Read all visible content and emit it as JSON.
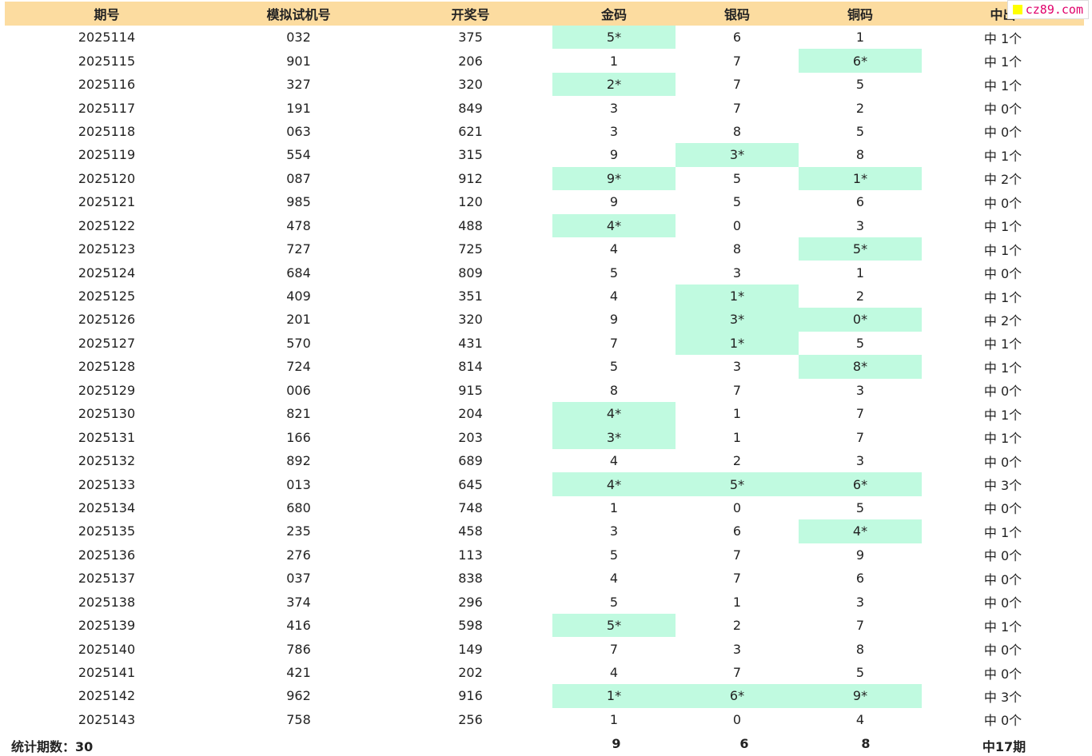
{
  "header": {
    "qihao": "期号",
    "moni": "模拟试机号",
    "kaijiang": "开奖号",
    "jinma": "金码",
    "yinma": "银码",
    "tongma": "铜码",
    "zhongchu": "中出"
  },
  "rows": [
    {
      "qihao": "2025114",
      "moni": "032",
      "kaijiang": "375",
      "jin": "5*",
      "yin": "6",
      "tong": "1",
      "zhong": "中 1个"
    },
    {
      "qihao": "2025115",
      "moni": "901",
      "kaijiang": "206",
      "jin": "1",
      "yin": "7",
      "tong": "6*",
      "zhong": "中 1个"
    },
    {
      "qihao": "2025116",
      "moni": "327",
      "kaijiang": "320",
      "jin": "2*",
      "yin": "7",
      "tong": "5",
      "zhong": "中 1个"
    },
    {
      "qihao": "2025117",
      "moni": "191",
      "kaijiang": "849",
      "jin": "3",
      "yin": "7",
      "tong": "2",
      "zhong": "中 0个"
    },
    {
      "qihao": "2025118",
      "moni": "063",
      "kaijiang": "621",
      "jin": "3",
      "yin": "8",
      "tong": "5",
      "zhong": "中 0个"
    },
    {
      "qihao": "2025119",
      "moni": "554",
      "kaijiang": "315",
      "jin": "9",
      "yin": "3*",
      "tong": "8",
      "zhong": "中 1个"
    },
    {
      "qihao": "2025120",
      "moni": "087",
      "kaijiang": "912",
      "jin": "9*",
      "yin": "5",
      "tong": "1*",
      "zhong": "中 2个"
    },
    {
      "qihao": "2025121",
      "moni": "985",
      "kaijiang": "120",
      "jin": "9",
      "yin": "5",
      "tong": "6",
      "zhong": "中 0个"
    },
    {
      "qihao": "2025122",
      "moni": "478",
      "kaijiang": "488",
      "jin": "4*",
      "yin": "0",
      "tong": "3",
      "zhong": "中 1个"
    },
    {
      "qihao": "2025123",
      "moni": "727",
      "kaijiang": "725",
      "jin": "4",
      "yin": "8",
      "tong": "5*",
      "zhong": "中 1个"
    },
    {
      "qihao": "2025124",
      "moni": "684",
      "kaijiang": "809",
      "jin": "5",
      "yin": "3",
      "tong": "1",
      "zhong": "中 0个"
    },
    {
      "qihao": "2025125",
      "moni": "409",
      "kaijiang": "351",
      "jin": "4",
      "yin": "1*",
      "tong": "2",
      "zhong": "中 1个"
    },
    {
      "qihao": "2025126",
      "moni": "201",
      "kaijiang": "320",
      "jin": "9",
      "yin": "3*",
      "tong": "0*",
      "zhong": "中 2个"
    },
    {
      "qihao": "2025127",
      "moni": "570",
      "kaijiang": "431",
      "jin": "7",
      "yin": "1*",
      "tong": "5",
      "zhong": "中 1个"
    },
    {
      "qihao": "2025128",
      "moni": "724",
      "kaijiang": "814",
      "jin": "5",
      "yin": "3",
      "tong": "8*",
      "zhong": "中 1个"
    },
    {
      "qihao": "2025129",
      "moni": "006",
      "kaijiang": "915",
      "jin": "8",
      "yin": "7",
      "tong": "3",
      "zhong": "中 0个"
    },
    {
      "qihao": "2025130",
      "moni": "821",
      "kaijiang": "204",
      "jin": "4*",
      "yin": "1",
      "tong": "7",
      "zhong": "中 1个"
    },
    {
      "qihao": "2025131",
      "moni": "166",
      "kaijiang": "203",
      "jin": "3*",
      "yin": "1",
      "tong": "7",
      "zhong": "中 1个"
    },
    {
      "qihao": "2025132",
      "moni": "892",
      "kaijiang": "689",
      "jin": "4",
      "yin": "2",
      "tong": "3",
      "zhong": "中 0个"
    },
    {
      "qihao": "2025133",
      "moni": "013",
      "kaijiang": "645",
      "jin": "4*",
      "yin": "5*",
      "tong": "6*",
      "zhong": "中 3个"
    },
    {
      "qihao": "2025134",
      "moni": "680",
      "kaijiang": "748",
      "jin": "1",
      "yin": "0",
      "tong": "5",
      "zhong": "中 0个"
    },
    {
      "qihao": "2025135",
      "moni": "235",
      "kaijiang": "458",
      "jin": "3",
      "yin": "6",
      "tong": "4*",
      "zhong": "中 1个"
    },
    {
      "qihao": "2025136",
      "moni": "276",
      "kaijiang": "113",
      "jin": "5",
      "yin": "7",
      "tong": "9",
      "zhong": "中 0个"
    },
    {
      "qihao": "2025137",
      "moni": "037",
      "kaijiang": "838",
      "jin": "4",
      "yin": "7",
      "tong": "6",
      "zhong": "中 0个"
    },
    {
      "qihao": "2025138",
      "moni": "374",
      "kaijiang": "296",
      "jin": "5",
      "yin": "1",
      "tong": "3",
      "zhong": "中 0个"
    },
    {
      "qihao": "2025139",
      "moni": "416",
      "kaijiang": "598",
      "jin": "5*",
      "yin": "2",
      "tong": "7",
      "zhong": "中 1个"
    },
    {
      "qihao": "2025140",
      "moni": "786",
      "kaijiang": "149",
      "jin": "7",
      "yin": "3",
      "tong": "8",
      "zhong": "中 0个"
    },
    {
      "qihao": "2025141",
      "moni": "421",
      "kaijiang": "202",
      "jin": "4",
      "yin": "7",
      "tong": "5",
      "zhong": "中 0个"
    },
    {
      "qihao": "2025142",
      "moni": "962",
      "kaijiang": "916",
      "jin": "1*",
      "yin": "6*",
      "tong": "9*",
      "zhong": "中 3个"
    },
    {
      "qihao": "2025143",
      "moni": "758",
      "kaijiang": "256",
      "jin": "1",
      "yin": "0",
      "tong": "4",
      "zhong": "中 0个"
    }
  ],
  "summary": {
    "label": "统计期数：30",
    "jin": "9",
    "yin": "6",
    "tong": "8",
    "zhong": "中17期"
  },
  "watermark": "cz89.com",
  "colors": {
    "header_bg": "#fcdca0",
    "hit_bg": "#c0fae0",
    "watermark_text": "#e0006a"
  }
}
